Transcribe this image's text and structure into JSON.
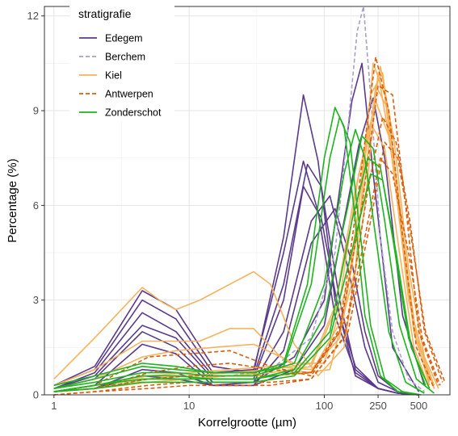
{
  "chart_data": {
    "type": "line",
    "title": "",
    "xlabel": "Korrelgrootte (µm)",
    "ylabel": "Percentage (%)",
    "x_scale": "log10",
    "xlim": [
      0.85,
      850
    ],
    "ylim": [
      0,
      12.3
    ],
    "x_ticks": [
      1,
      10,
      100,
      250,
      500
    ],
    "x_tick_labels": [
      "1",
      "10",
      "100",
      "250",
      "500"
    ],
    "y_ticks": [
      0,
      3,
      6,
      9,
      12
    ],
    "y_tick_labels": [
      "0",
      "3",
      "6",
      "9",
      "12"
    ],
    "grid": true,
    "legend": {
      "title": "stratigrafie",
      "position": "top-left"
    },
    "series": [
      {
        "name": "Edegem",
        "color": "#5b3a8c",
        "dash": "solid",
        "curves": [
          {
            "x": [
              1,
              2,
              4.5,
              8,
              15,
              30,
              50,
              70,
              90,
              120,
              170,
              250,
              350,
              500
            ],
            "y": [
              0.3,
              0.9,
              3.3,
              2.7,
              0.9,
              0.7,
              5.0,
              9.5,
              7.4,
              3.0,
              0.9,
              0.2,
              0.05,
              0
            ]
          },
          {
            "x": [
              1,
              2,
              4.5,
              8,
              15,
              30,
              50,
              70,
              90,
              120,
              170,
              250,
              350,
              500
            ],
            "y": [
              0.3,
              0.8,
              3.0,
              2.4,
              0.7,
              0.8,
              4.5,
              7.4,
              5.8,
              2.5,
              0.7,
              0.2,
              0.05,
              0
            ]
          },
          {
            "x": [
              1,
              2,
              4.5,
              8,
              15,
              30,
              50,
              75,
              95,
              130,
              170,
              250,
              350,
              500
            ],
            "y": [
              0.2,
              0.7,
              2.6,
              2.0,
              0.6,
              0.6,
              3.5,
              7.3,
              6.6,
              3.0,
              0.8,
              0.2,
              0.05,
              0
            ]
          },
          {
            "x": [
              1,
              2,
              4.5,
              8,
              15,
              30,
              50,
              70,
              95,
              130,
              170,
              250,
              350,
              500
            ],
            "y": [
              0.2,
              0.6,
              2.2,
              1.8,
              0.5,
              0.5,
              3.0,
              6.6,
              5.6,
              2.5,
              0.6,
              0.2,
              0.05,
              0
            ]
          },
          {
            "x": [
              1,
              2,
              4.5,
              8,
              15,
              30,
              50,
              80,
              110,
              150,
              200,
              250,
              350,
              500
            ],
            "y": [
              0.2,
              0.5,
              2.0,
              1.5,
              0.4,
              0.4,
              2.0,
              5.5,
              6.3,
              4.0,
              1.5,
              0.4,
              0.1,
              0
            ]
          },
          {
            "x": [
              1,
              2,
              4.5,
              8,
              15,
              30,
              50,
              80,
              120,
              160,
              200,
              250,
              350,
              500
            ],
            "y": [
              0.1,
              0.3,
              1.6,
              1.3,
              0.3,
              0.3,
              1.4,
              4.8,
              5.9,
              4.2,
              2.0,
              0.6,
              0.1,
              0
            ]
          },
          {
            "x": [
              1,
              2,
              4.5,
              8,
              15,
              30,
              60,
              100,
              130,
              160,
              190,
              230,
              320,
              500
            ],
            "y": [
              0.1,
              0.2,
              0.8,
              0.7,
              0.3,
              0.4,
              1.2,
              3.0,
              6.5,
              9.3,
              10.5,
              7.0,
              1.5,
              0.1
            ]
          },
          {
            "x": [
              1,
              2,
              4.5,
              8,
              15,
              30,
              60,
              100,
              140,
              180,
              230,
              280,
              380,
              550
            ],
            "y": [
              0.1,
              0.2,
              0.6,
              0.5,
              0.3,
              0.3,
              0.8,
              2.2,
              5.5,
              7.9,
              9.4,
              7.5,
              2.5,
              0.3
            ]
          }
        ]
      },
      {
        "name": "Berchem",
        "color": "#a99fce",
        "dash": "dashed",
        "curves": [
          {
            "x": [
              1,
              2,
              5,
              10,
              20,
              40,
              80,
              120,
              150,
              175,
              195,
              220,
              260,
              320,
              420,
              550
            ],
            "y": [
              0.1,
              0.2,
              0.5,
              0.5,
              0.6,
              0.8,
              1.8,
              4.5,
              8.5,
              11.5,
              12.3,
              9.5,
              5.0,
              2.0,
              0.5,
              0.1
            ]
          }
        ]
      },
      {
        "name": "Kiel",
        "color": "#f5b35e",
        "dash": "solid",
        "curves": [
          {
            "x": [
              1,
              2,
              4.5,
              6.5,
              8,
              12,
              20,
              30,
              40,
              60,
              90,
              140,
              200,
              250,
              320,
              420,
              600
            ],
            "y": [
              0.5,
              1.8,
              3.4,
              2.9,
              2.7,
              3.0,
              3.5,
              3.9,
              3.5,
              1.6,
              0.6,
              1.5,
              6.0,
              10.2,
              7.5,
              3.0,
              0.4
            ]
          },
          {
            "x": [
              1,
              2,
              4.5,
              8,
              12,
              20,
              30,
              45,
              70,
              110,
              170,
              230,
              280,
              360,
              460,
              600
            ],
            "y": [
              0.3,
              0.8,
              1.7,
              1.7,
              1.7,
              2.1,
              2.1,
              1.3,
              0.7,
              0.8,
              4.0,
              10.5,
              9.5,
              5.5,
              2.0,
              0.3
            ]
          },
          {
            "x": [
              1,
              2,
              4.5,
              8,
              15,
              30,
              60,
              100,
              160,
              220,
              270,
              350,
              450,
              600
            ],
            "y": [
              0.2,
              0.5,
              1.2,
              1.4,
              1.5,
              1.6,
              1.0,
              1.0,
              4.0,
              9.5,
              10.2,
              6.5,
              2.5,
              0.5
            ]
          },
          {
            "x": [
              1,
              2,
              5,
              10,
              20,
              40,
              80,
              130,
              190,
              240,
              300,
              380,
              480,
              650
            ],
            "y": [
              0.1,
              0.3,
              0.6,
              0.7,
              0.8,
              0.9,
              0.8,
              1.8,
              6.0,
              9.8,
              9.0,
              5.0,
              1.8,
              0.2
            ]
          },
          {
            "x": [
              1,
              2,
              5,
              10,
              20,
              40,
              80,
              140,
              200,
              260,
              330,
              420,
              550,
              700
            ],
            "y": [
              0.1,
              0.2,
              0.4,
              0.5,
              0.6,
              0.6,
              0.7,
              2.5,
              7.5,
              10.4,
              8.0,
              4.0,
              1.2,
              0.2
            ]
          },
          {
            "x": [
              1,
              2,
              5,
              10,
              20,
              40,
              80,
              130,
              180,
              240,
              300,
              380,
              480,
              650
            ],
            "y": [
              0.1,
              0.2,
              0.5,
              0.6,
              0.6,
              0.7,
              0.9,
              3.0,
              7.0,
              9.3,
              8.2,
              5.0,
              1.8,
              0.3
            ]
          },
          {
            "x": [
              1,
              2,
              5,
              10,
              20,
              40,
              80,
              120,
              170,
              220,
              280,
              360,
              460,
              600
            ],
            "y": [
              0.1,
              0.3,
              0.6,
              0.6,
              0.7,
              0.8,
              1.0,
              2.8,
              6.5,
              8.6,
              7.8,
              4.5,
              1.5,
              0.2
            ]
          }
        ]
      },
      {
        "name": "Antwerpen",
        "color": "#d95f0e",
        "dash": "dashed",
        "curves": [
          {
            "x": [
              1,
              2,
              5,
              10,
              20,
              40,
              80,
              130,
              180,
              240,
              300,
              380,
              480,
              650
            ],
            "y": [
              0.1,
              0.3,
              1.2,
              1.3,
              1.4,
              0.9,
              0.6,
              2.0,
              6.5,
              10.7,
              9.0,
              5.0,
              1.5,
              0.2
            ]
          },
          {
            "x": [
              1,
              2,
              5,
              10,
              20,
              40,
              80,
              130,
              190,
              250,
              320,
              400,
              500,
              700
            ],
            "y": [
              0.1,
              0.2,
              0.7,
              0.9,
              1.0,
              0.8,
              0.7,
              2.0,
              6.0,
              9.8,
              9.5,
              6.0,
              2.0,
              0.3
            ]
          },
          {
            "x": [
              1,
              2,
              5,
              10,
              20,
              40,
              80,
              150,
              210,
              270,
              340,
              430,
              550,
              750
            ],
            "y": [
              0.1,
              0.2,
              0.5,
              0.6,
              0.6,
              0.6,
              0.7,
              2.5,
              6.5,
              8.8,
              8.0,
              5.5,
              2.0,
              0.4
            ]
          },
          {
            "x": [
              1,
              2,
              5,
              10,
              20,
              40,
              80,
              150,
              220,
              280,
              350,
              440,
              560,
              780
            ],
            "y": [
              0.0,
              0.1,
              0.3,
              0.4,
              0.4,
              0.4,
              0.5,
              2.0,
              5.5,
              8.0,
              7.5,
              5.0,
              2.0,
              0.4
            ]
          },
          {
            "x": [
              1,
              2,
              5,
              10,
              20,
              40,
              80,
              140,
              200,
              260,
              320,
              420,
              530,
              720
            ],
            "y": [
              0.0,
              0.1,
              0.2,
              0.3,
              0.3,
              0.3,
              0.5,
              1.8,
              5.0,
              7.5,
              7.0,
              4.5,
              1.8,
              0.3
            ]
          }
        ]
      },
      {
        "name": "Zonderschot",
        "color": "#1fb31f",
        "dash": "solid",
        "curves": [
          {
            "x": [
              1,
              2,
              4.5,
              8,
              15,
              30,
              50,
              75,
              100,
              120,
              140,
              165,
              200,
              260,
              350,
              500
            ],
            "y": [
              0.3,
              0.6,
              1.0,
              0.9,
              0.7,
              0.7,
              1.0,
              3.5,
              7.5,
              9.1,
              8.5,
              6.0,
              2.5,
              0.6,
              0.1,
              0
            ]
          },
          {
            "x": [
              1,
              2,
              4.5,
              8,
              15,
              30,
              50,
              80,
              110,
              130,
              155,
              180,
              220,
              280,
              380,
              520
            ],
            "y": [
              0.2,
              0.5,
              0.9,
              0.8,
              0.7,
              0.7,
              0.9,
              3.5,
              7.5,
              8.8,
              8.0,
              5.5,
              2.2,
              0.5,
              0.1,
              0
            ]
          },
          {
            "x": [
              1,
              2,
              4.5,
              8,
              15,
              30,
              60,
              100,
              140,
              170,
              200,
              240,
              300,
              400,
              550
            ],
            "y": [
              0.2,
              0.4,
              0.7,
              0.7,
              0.6,
              0.6,
              1.0,
              3.5,
              7.0,
              8.4,
              7.5,
              5.0,
              2.0,
              0.4,
              0.05
            ]
          },
          {
            "x": [
              1,
              2,
              4.5,
              8,
              15,
              30,
              60,
              100,
              150,
              190,
              230,
              280,
              360,
              480,
              650
            ],
            "y": [
              0.1,
              0.3,
              0.6,
              0.6,
              0.5,
              0.5,
              0.8,
              2.5,
              6.0,
              8.2,
              7.8,
              5.5,
              2.2,
              0.5,
              0.05
            ]
          },
          {
            "x": [
              1,
              2,
              4.5,
              8,
              15,
              30,
              60,
              110,
              160,
              210,
              260,
              320,
              420,
              560
            ],
            "y": [
              0.1,
              0.3,
              0.5,
              0.5,
              0.5,
              0.5,
              0.7,
              2.0,
              5.5,
              7.5,
              7.2,
              5.0,
              1.8,
              0.3
            ]
          },
          {
            "x": [
              1,
              2,
              4.5,
              8,
              15,
              30,
              60,
              110,
              170,
              220,
              270,
              340,
              440,
              600
            ],
            "y": [
              0.1,
              0.2,
              0.4,
              0.4,
              0.4,
              0.4,
              0.6,
              1.8,
              5.0,
              7.0,
              6.8,
              4.5,
              1.5,
              0.2
            ]
          }
        ]
      }
    ]
  }
}
